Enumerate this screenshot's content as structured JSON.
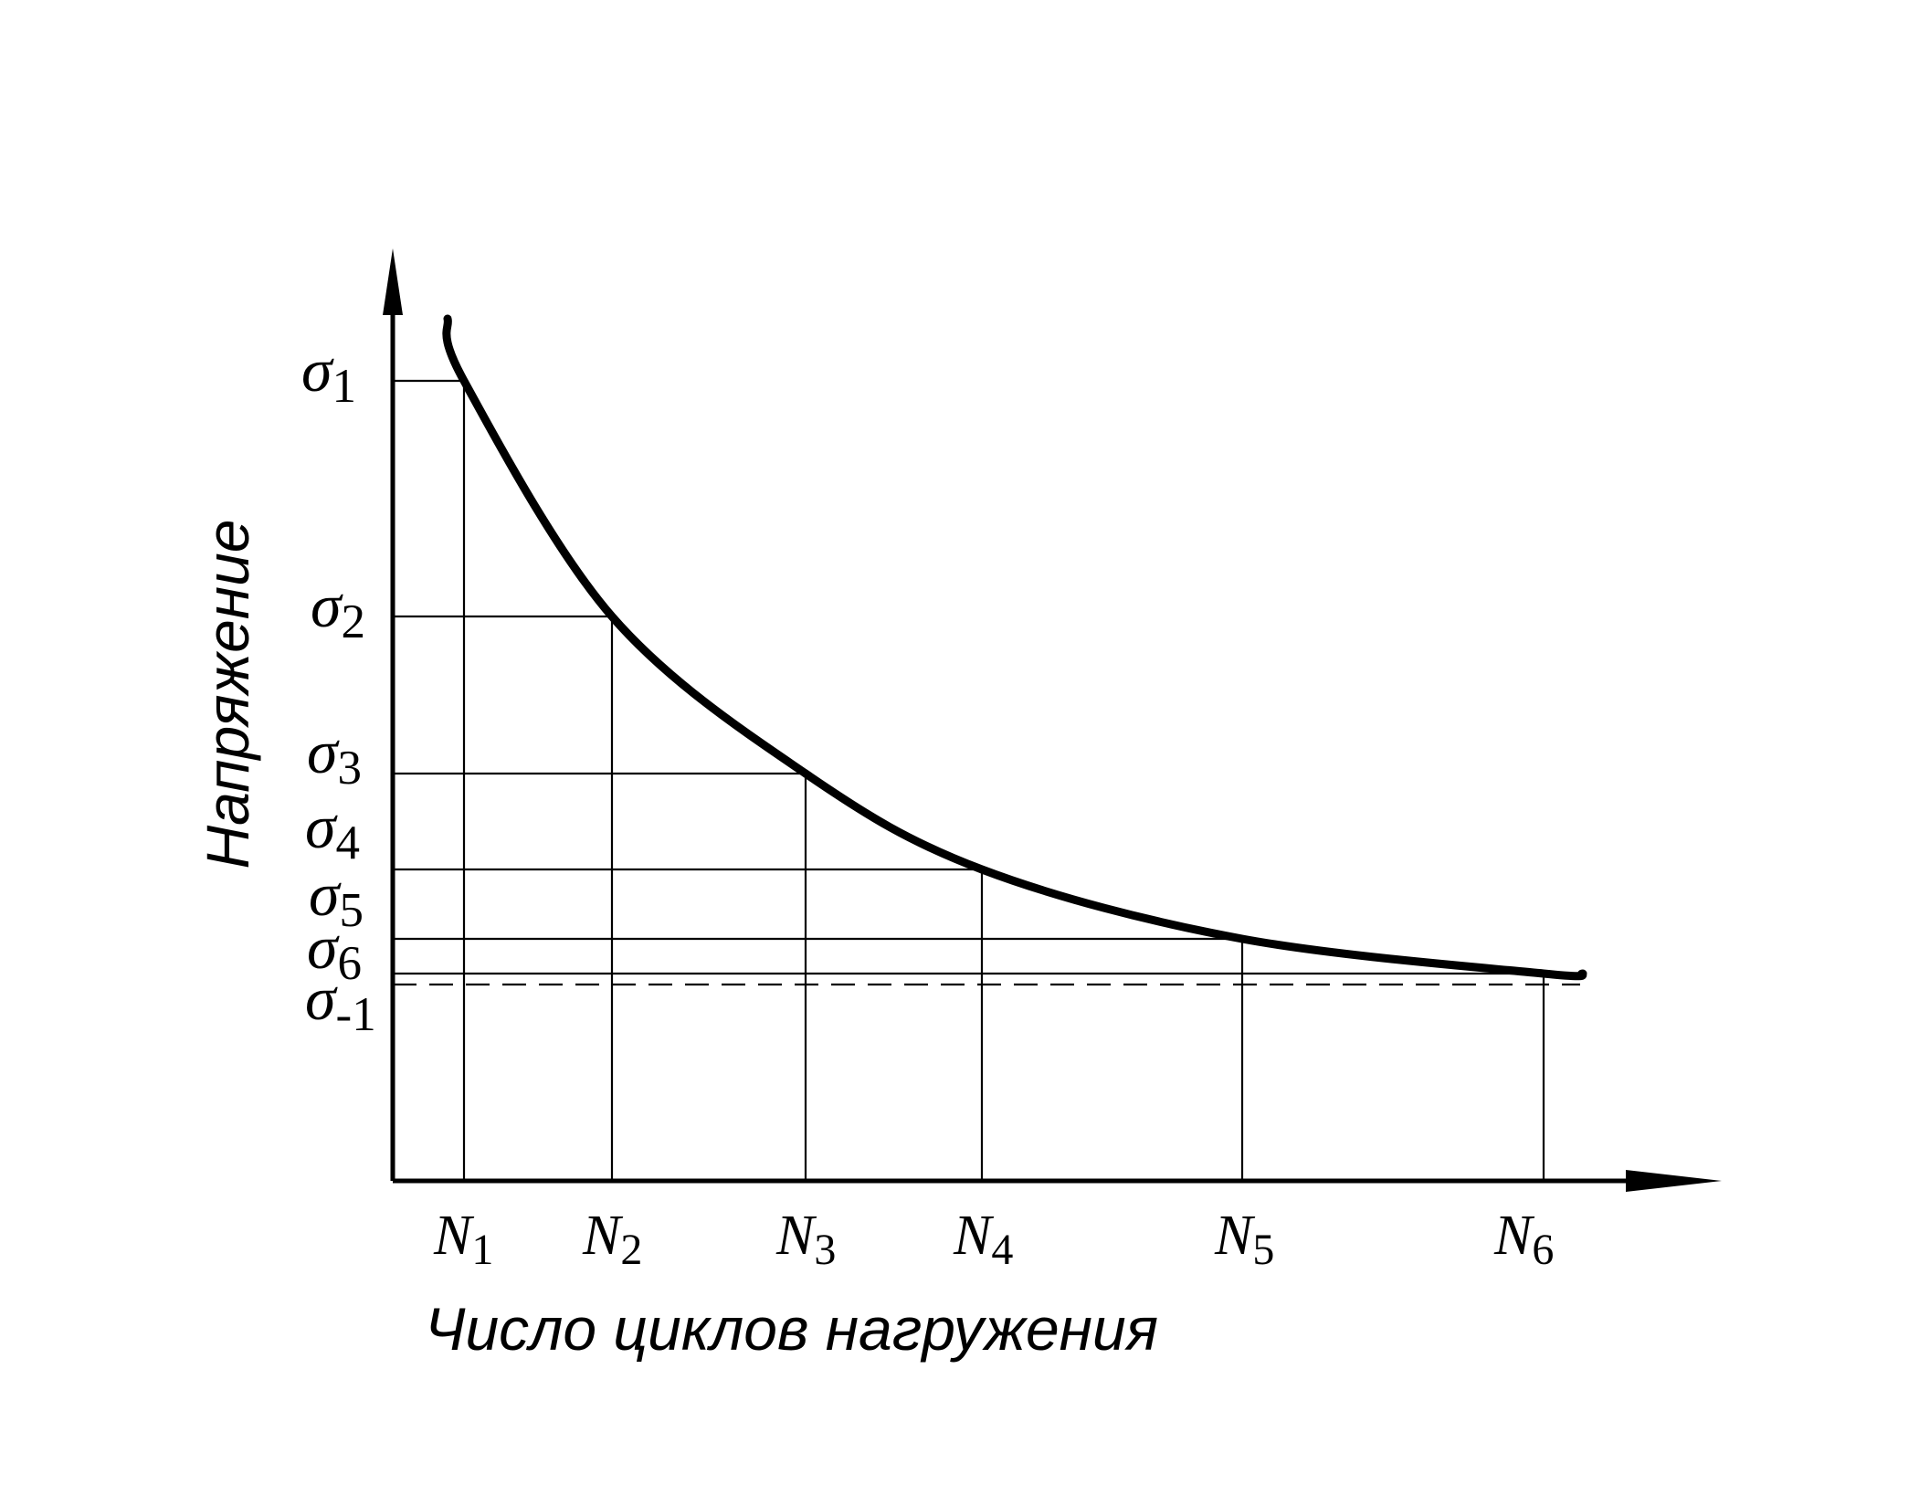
{
  "chart_data": {
    "type": "line",
    "xlabel": "Число циклов нагружения",
    "ylabel": "Напряжение",
    "x_ticks": [
      {
        "base": "N",
        "sub": "1"
      },
      {
        "base": "N",
        "sub": "2"
      },
      {
        "base": "N",
        "sub": "3"
      },
      {
        "base": "N",
        "sub": "4"
      },
      {
        "base": "N",
        "sub": "5"
      },
      {
        "base": "N",
        "sub": "6"
      }
    ],
    "y_ticks": [
      {
        "base": "σ",
        "sub": "1"
      },
      {
        "base": "σ",
        "sub": "2"
      },
      {
        "base": "σ",
        "sub": "3"
      },
      {
        "base": "σ",
        "sub": "4"
      },
      {
        "base": "σ",
        "sub": "5"
      },
      {
        "base": "σ",
        "sub": "6"
      }
    ],
    "endurance_limit": {
      "base": "σ",
      "sub": "-1",
      "style": "dashed"
    },
    "curve": {
      "shape": "decaying",
      "approaches": "endurance_limit"
    },
    "grid": false,
    "colors": {
      "ink": "#000000",
      "background": "#ffffff"
    }
  }
}
